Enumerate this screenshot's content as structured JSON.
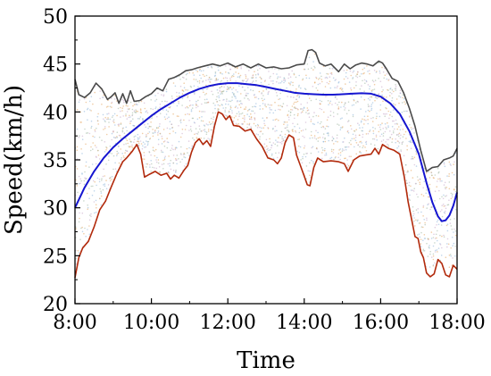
{
  "chart_data": {
    "type": "line",
    "title": "",
    "xlabel": "Time",
    "ylabel": "Speed(km/h)",
    "xlim": [
      8,
      18
    ],
    "ylim": [
      20,
      50
    ],
    "x_ticks": [
      {
        "value": 8,
        "label": "8:00"
      },
      {
        "value": 10,
        "label": "10:00"
      },
      {
        "value": 12,
        "label": "12:00"
      },
      {
        "value": 14,
        "label": "14:00"
      },
      {
        "value": 16,
        "label": "16:00"
      },
      {
        "value": 18,
        "label": "18:00"
      }
    ],
    "y_ticks": [
      {
        "value": 20,
        "label": "20"
      },
      {
        "value": 25,
        "label": "25"
      },
      {
        "value": 30,
        "label": "30"
      },
      {
        "value": 35,
        "label": "35"
      },
      {
        "value": 40,
        "label": "40"
      },
      {
        "value": 45,
        "label": "45"
      },
      {
        "value": 50,
        "label": "50"
      }
    ],
    "grid": false,
    "legend": "none",
    "series": [
      {
        "color": "#4a4a4a",
        "role": "upper-envelope",
        "points": [
          [
            8.0,
            43.4
          ],
          [
            8.1,
            41.8
          ],
          [
            8.25,
            41.5
          ],
          [
            8.4,
            42.0
          ],
          [
            8.55,
            43.0
          ],
          [
            8.7,
            42.4
          ],
          [
            8.85,
            41.3
          ],
          [
            8.95,
            41.6
          ],
          [
            9.05,
            42.0
          ],
          [
            9.15,
            40.9
          ],
          [
            9.25,
            41.9
          ],
          [
            9.35,
            40.9
          ],
          [
            9.45,
            42.2
          ],
          [
            9.55,
            41.1
          ],
          [
            9.7,
            41.2
          ],
          [
            9.85,
            41.6
          ],
          [
            10.0,
            41.9
          ],
          [
            10.15,
            42.5
          ],
          [
            10.3,
            42.2
          ],
          [
            10.45,
            43.4
          ],
          [
            10.6,
            43.6
          ],
          [
            10.75,
            43.9
          ],
          [
            10.9,
            44.3
          ],
          [
            11.05,
            44.4
          ],
          [
            11.2,
            44.6
          ],
          [
            11.4,
            44.8
          ],
          [
            11.6,
            45.0
          ],
          [
            11.8,
            44.8
          ],
          [
            12.0,
            45.1
          ],
          [
            12.2,
            44.7
          ],
          [
            12.4,
            45.0
          ],
          [
            12.6,
            44.6
          ],
          [
            12.8,
            45.0
          ],
          [
            13.0,
            44.6
          ],
          [
            13.2,
            44.7
          ],
          [
            13.4,
            44.5
          ],
          [
            13.6,
            44.6
          ],
          [
            13.8,
            44.9
          ],
          [
            14.0,
            45.0
          ],
          [
            14.1,
            46.4
          ],
          [
            14.2,
            46.5
          ],
          [
            14.3,
            46.2
          ],
          [
            14.4,
            45.1
          ],
          [
            14.55,
            44.8
          ],
          [
            14.7,
            45.0
          ],
          [
            14.9,
            44.2
          ],
          [
            15.05,
            45.0
          ],
          [
            15.2,
            44.5
          ],
          [
            15.35,
            44.9
          ],
          [
            15.5,
            45.1
          ],
          [
            15.65,
            45.0
          ],
          [
            15.8,
            44.8
          ],
          [
            15.95,
            45.3
          ],
          [
            16.05,
            45.1
          ],
          [
            16.15,
            44.5
          ],
          [
            16.3,
            43.5
          ],
          [
            16.45,
            43.2
          ],
          [
            16.6,
            42.0
          ],
          [
            16.75,
            40.4
          ],
          [
            16.9,
            38.5
          ],
          [
            17.05,
            36.0
          ],
          [
            17.2,
            33.8
          ],
          [
            17.35,
            34.2
          ],
          [
            17.5,
            34.3
          ],
          [
            17.65,
            35.0
          ],
          [
            17.8,
            35.2
          ],
          [
            17.9,
            35.4
          ],
          [
            18.0,
            36.2
          ]
        ]
      },
      {
        "color": "#b22a0c",
        "role": "lower-envelope",
        "points": [
          [
            8.0,
            22.7
          ],
          [
            8.1,
            24.8
          ],
          [
            8.2,
            25.8
          ],
          [
            8.35,
            26.5
          ],
          [
            8.5,
            28.0
          ],
          [
            8.65,
            29.8
          ],
          [
            8.8,
            30.7
          ],
          [
            8.95,
            32.2
          ],
          [
            9.1,
            33.6
          ],
          [
            9.25,
            34.8
          ],
          [
            9.35,
            35.2
          ],
          [
            9.5,
            35.9
          ],
          [
            9.62,
            36.6
          ],
          [
            9.72,
            35.6
          ],
          [
            9.82,
            33.2
          ],
          [
            9.95,
            33.5
          ],
          [
            10.1,
            33.8
          ],
          [
            10.25,
            33.4
          ],
          [
            10.4,
            33.6
          ],
          [
            10.5,
            33.0
          ],
          [
            10.6,
            33.4
          ],
          [
            10.72,
            33.1
          ],
          [
            10.85,
            33.9
          ],
          [
            10.95,
            34.4
          ],
          [
            11.05,
            35.8
          ],
          [
            11.15,
            36.8
          ],
          [
            11.25,
            37.2
          ],
          [
            11.35,
            36.6
          ],
          [
            11.45,
            37.0
          ],
          [
            11.55,
            36.4
          ],
          [
            11.65,
            38.5
          ],
          [
            11.75,
            40.0
          ],
          [
            11.85,
            39.8
          ],
          [
            11.95,
            39.2
          ],
          [
            12.05,
            39.6
          ],
          [
            12.15,
            38.6
          ],
          [
            12.3,
            38.5
          ],
          [
            12.45,
            38.0
          ],
          [
            12.6,
            38.2
          ],
          [
            12.75,
            37.2
          ],
          [
            12.9,
            36.4
          ],
          [
            13.05,
            35.2
          ],
          [
            13.2,
            35.0
          ],
          [
            13.3,
            34.6
          ],
          [
            13.4,
            35.2
          ],
          [
            13.5,
            36.8
          ],
          [
            13.6,
            37.6
          ],
          [
            13.72,
            37.3
          ],
          [
            13.8,
            35.5
          ],
          [
            13.9,
            34.4
          ],
          [
            14.0,
            33.3
          ],
          [
            14.08,
            32.4
          ],
          [
            14.15,
            32.3
          ],
          [
            14.25,
            34.2
          ],
          [
            14.35,
            35.2
          ],
          [
            14.5,
            34.8
          ],
          [
            14.7,
            34.9
          ],
          [
            14.9,
            34.8
          ],
          [
            15.05,
            34.6
          ],
          [
            15.15,
            33.8
          ],
          [
            15.3,
            35.0
          ],
          [
            15.45,
            35.4
          ],
          [
            15.6,
            35.5
          ],
          [
            15.75,
            35.6
          ],
          [
            15.85,
            36.2
          ],
          [
            15.95,
            35.6
          ],
          [
            16.05,
            36.6
          ],
          [
            16.2,
            36.2
          ],
          [
            16.35,
            36.0
          ],
          [
            16.5,
            35.6
          ],
          [
            16.62,
            33.2
          ],
          [
            16.72,
            30.6
          ],
          [
            16.82,
            28.6
          ],
          [
            16.9,
            27.0
          ],
          [
            16.98,
            26.8
          ],
          [
            17.05,
            25.4
          ],
          [
            17.12,
            24.8
          ],
          [
            17.2,
            23.2
          ],
          [
            17.3,
            22.8
          ],
          [
            17.4,
            23.1
          ],
          [
            17.5,
            24.6
          ],
          [
            17.6,
            24.2
          ],
          [
            17.7,
            23.0
          ],
          [
            17.8,
            22.8
          ],
          [
            17.9,
            24.0
          ],
          [
            18.0,
            23.6
          ]
        ]
      },
      {
        "color": "#1515d0",
        "role": "fitted-mean",
        "points": [
          [
            8.0,
            30.0
          ],
          [
            8.25,
            32.1
          ],
          [
            8.5,
            33.8
          ],
          [
            8.75,
            35.2
          ],
          [
            9.0,
            36.3
          ],
          [
            9.25,
            37.2
          ],
          [
            9.5,
            38.0
          ],
          [
            9.75,
            38.8
          ],
          [
            10.0,
            39.6
          ],
          [
            10.25,
            40.3
          ],
          [
            10.5,
            40.9
          ],
          [
            10.75,
            41.5
          ],
          [
            11.0,
            42.0
          ],
          [
            11.25,
            42.4
          ],
          [
            11.5,
            42.7
          ],
          [
            11.75,
            42.9
          ],
          [
            12.0,
            43.0
          ],
          [
            12.25,
            43.0
          ],
          [
            12.5,
            42.9
          ],
          [
            12.75,
            42.8
          ],
          [
            13.0,
            42.6
          ],
          [
            13.25,
            42.4
          ],
          [
            13.5,
            42.2
          ],
          [
            13.75,
            42.0
          ],
          [
            14.0,
            41.9
          ],
          [
            14.25,
            41.85
          ],
          [
            14.5,
            41.8
          ],
          [
            14.75,
            41.8
          ],
          [
            15.0,
            41.85
          ],
          [
            15.25,
            41.9
          ],
          [
            15.5,
            41.95
          ],
          [
            15.75,
            41.9
          ],
          [
            16.0,
            41.6
          ],
          [
            16.25,
            40.9
          ],
          [
            16.5,
            39.8
          ],
          [
            16.75,
            38.0
          ],
          [
            17.0,
            35.6
          ],
          [
            17.2,
            32.6
          ],
          [
            17.35,
            30.6
          ],
          [
            17.5,
            29.1
          ],
          [
            17.6,
            28.6
          ],
          [
            17.7,
            28.7
          ],
          [
            17.8,
            29.2
          ],
          [
            17.9,
            30.2
          ],
          [
            18.0,
            31.6
          ]
        ]
      }
    ],
    "background_scatter": {
      "description_colors": [
        "#e3a35a",
        "#8bb3d9",
        "#9fb6a0",
        "#c7a6c8"
      ]
    }
  }
}
